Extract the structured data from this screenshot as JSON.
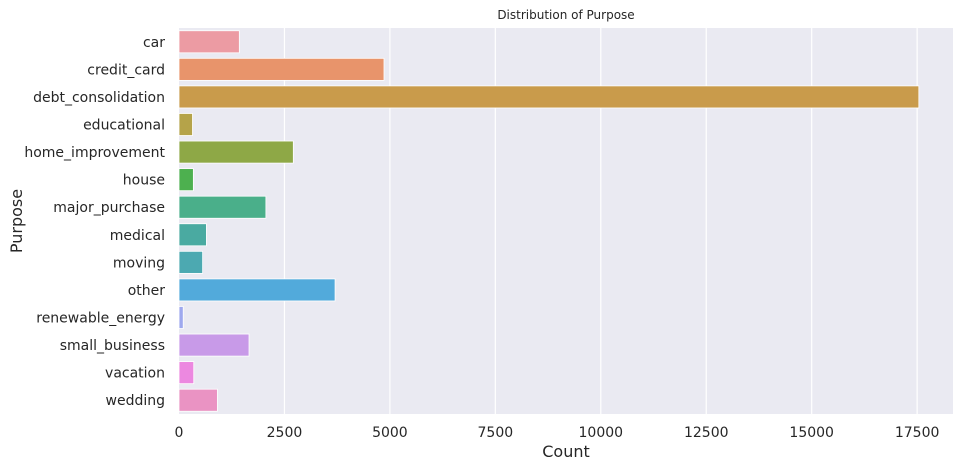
{
  "chart_data": {
    "type": "bar",
    "orientation": "horizontal",
    "title": "Distribution of Purpose",
    "xlabel": "Count",
    "ylabel": "Purpose",
    "categories": [
      "car",
      "credit_card",
      "debt_consolidation",
      "educational",
      "home_improvement",
      "house",
      "major_purchase",
      "medical",
      "moving",
      "other",
      "renewable_energy",
      "small_business",
      "vacation",
      "wedding"
    ],
    "values": [
      1430,
      4860,
      17540,
      320,
      2710,
      340,
      2060,
      650,
      560,
      3700,
      100,
      1660,
      350,
      910
    ],
    "colors": [
      "#ec9ba3",
      "#e8946b",
      "#c99b4b",
      "#b5a349",
      "#8ea846",
      "#4db04f",
      "#4aaf8a",
      "#4aaaa1",
      "#4ca9b1",
      "#52aadb",
      "#9ea8ee",
      "#c89ae8",
      "#ec88e0",
      "#ea93c3"
    ],
    "xlim": [
      0,
      18350
    ],
    "xticks": [
      0,
      2500,
      5000,
      7500,
      10000,
      12500,
      15000,
      17500
    ],
    "grid": true,
    "background": "#eaeaf2"
  }
}
